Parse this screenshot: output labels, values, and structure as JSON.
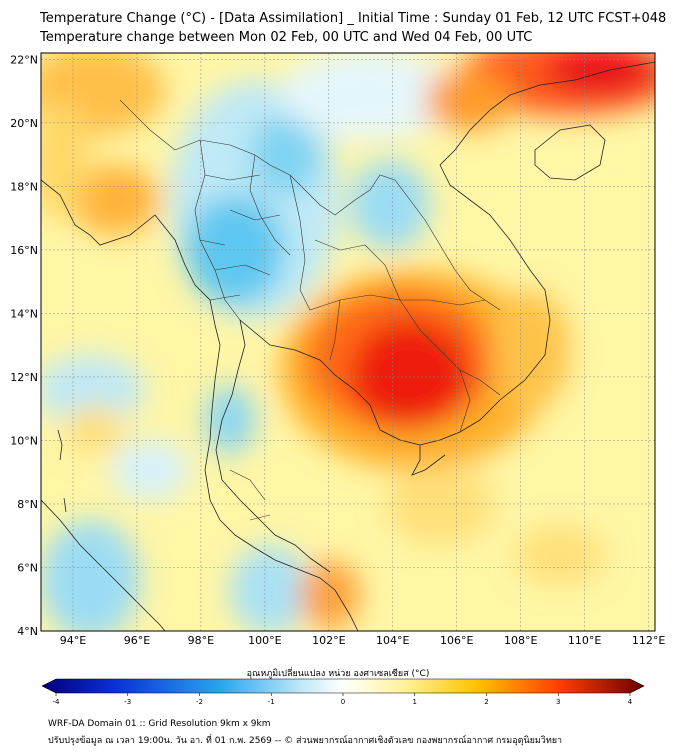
{
  "title": {
    "line1": "Temperature Change (°C) - [Data Assimilation] _ Initial Time : Sunday 01 Feb, 12 UTC FCST+048",
    "line2": "Temperature change between Mon 02 Feb, 00 UTC and Wed 04 Feb, 00 UTC"
  },
  "map": {
    "lat_labels": [
      "22°N",
      "20°N",
      "18°N",
      "16°N",
      "14°N",
      "12°N",
      "10°N",
      "8°N",
      "6°N",
      "4°N"
    ],
    "lon_labels": [
      "94°E",
      "96°E",
      "98°E",
      "100°E",
      "102°E",
      "104°E",
      "106°E",
      "108°E",
      "110°E",
      "112°E"
    ],
    "lat_range": [
      4,
      22.2
    ],
    "lon_range": [
      93,
      112.2
    ]
  },
  "colorbar": {
    "title": "อุณหภูมิเปลี่ยนแปลง หน่วย องศาเซลเซียส (°C)",
    "tick_labels": [
      "-4",
      "-3",
      "-2",
      "-1",
      "0",
      "1",
      "2",
      "3",
      "4"
    ],
    "range": [
      -4,
      4
    ],
    "colors": [
      "#00007a",
      "#0b2fd6",
      "#29a8f0",
      "#bfe8f7",
      "#ffffff",
      "#fff39a",
      "#ffc400",
      "#ff3d00",
      "#6b0000"
    ]
  },
  "footer": {
    "line1": "WRF-DA Domain 01 :: Grid Resolution 9km x 9km",
    "line2": "ปรับปรุงข้อมูล ณ เวลา 19:00น. วัน อา. ที่ 01 ก.พ. 2569 -- © ส่วนพยากรณ์อากาศเชิงตัวเลข กองพยากรณ์อากาศ กรมอุตุนิยมวิทยา"
  }
}
